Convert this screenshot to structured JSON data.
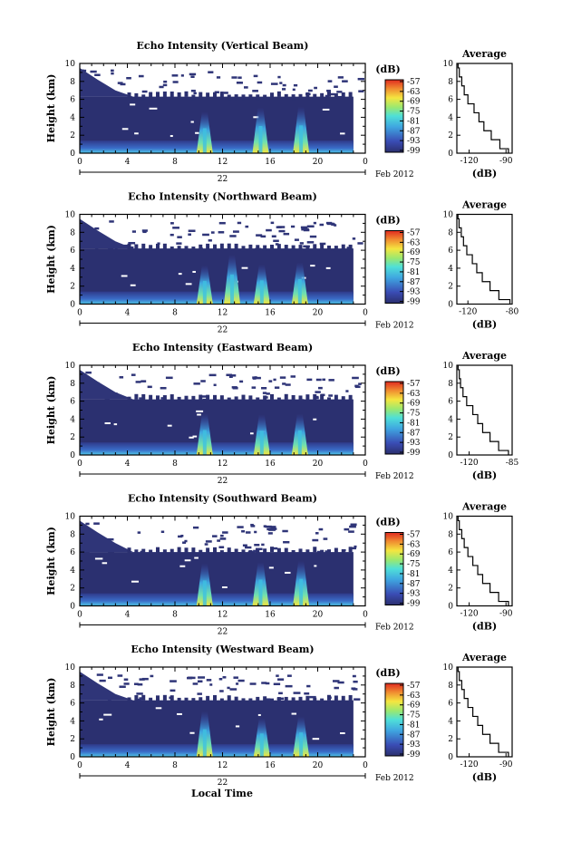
{
  "figure": {
    "xlabel": "Local Time",
    "date_label": "Feb 2012",
    "day_label": "22",
    "x_ticks": [
      "0",
      "4",
      "8",
      "12",
      "16",
      "20",
      "0"
    ],
    "y_ticks": [
      "0",
      "2",
      "4",
      "6",
      "8",
      "10"
    ],
    "ylabel": "Height (km)",
    "colorbar_unit": "(dB)",
    "colorbar_ticks": [
      "-57",
      "-63",
      "-69",
      "-75",
      "-81",
      "-87",
      "-93",
      "-99"
    ],
    "colors": {
      "background_echo": "#2b3070",
      "low": "#3a48b0",
      "mid": "#3fb8e0",
      "high": "#f2e040",
      "peak": "#e03020"
    }
  },
  "avg_label": "Average",
  "avg_xlabel": "(dB)",
  "chart_data": [
    {
      "type": "heatmap",
      "title": "Echo Intensity (Vertical Beam)",
      "xlabel": "Local Time",
      "ylabel": "Height (km)",
      "xlim": [
        0,
        24
      ],
      "ylim": [
        0,
        10
      ],
      "echo_top_km": 6.3,
      "convective_times_h": [
        10.5,
        15.2,
        18.6
      ],
      "colorbar": {
        "unit": "(dB)",
        "range": [
          -99,
          -57
        ]
      },
      "average_profile": {
        "xlim": [
          -130,
          -85
        ],
        "xticks": [
          "-120",
          "-90"
        ],
        "height": [
          0,
          1,
          2,
          3,
          4,
          5,
          6,
          7,
          8,
          9,
          10
        ],
        "value": [
          -88,
          -95,
          -102,
          -108,
          -112,
          -116,
          -121,
          -124,
          -126,
          -128,
          -129
        ]
      }
    },
    {
      "type": "heatmap",
      "title": "Echo Intensity (Northward Beam)",
      "xlabel": "Local Time",
      "ylabel": "Height (km)",
      "xlim": [
        0,
        24
      ],
      "ylim": [
        0,
        10
      ],
      "echo_top_km": 6.2,
      "convective_times_h": [
        10.5,
        12.8,
        15.3,
        18.5
      ],
      "colorbar": {
        "unit": "(dB)",
        "range": [
          -99,
          -57
        ]
      },
      "average_profile": {
        "xlim": [
          -130,
          -80
        ],
        "xticks": [
          "-120",
          "-80"
        ],
        "height": [
          0,
          1,
          2,
          3,
          4,
          5,
          6,
          7,
          8,
          9,
          10
        ],
        "value": [
          -82,
          -92,
          -100,
          -107,
          -112,
          -116,
          -121,
          -124,
          -126,
          -128,
          -129
        ]
      }
    },
    {
      "type": "heatmap",
      "title": "Echo Intensity (Eastward Beam)",
      "xlabel": "Local Time",
      "ylabel": "Height (km)",
      "xlim": [
        0,
        24
      ],
      "ylim": [
        0,
        10
      ],
      "echo_top_km": 6.2,
      "convective_times_h": [
        10.5,
        15.3,
        18.5
      ],
      "colorbar": {
        "unit": "(dB)",
        "range": [
          -99,
          -57
        ]
      },
      "average_profile": {
        "xlim": [
          -130,
          -85
        ],
        "xticks": [
          "-120",
          "-85"
        ],
        "height": [
          0,
          1,
          2,
          3,
          4,
          5,
          6,
          7,
          8,
          9,
          10
        ],
        "value": [
          -88,
          -96,
          -103,
          -109,
          -113,
          -117,
          -122,
          -125,
          -127,
          -128,
          -129
        ]
      }
    },
    {
      "type": "heatmap",
      "title": "Echo Intensity (Southward Beam)",
      "xlabel": "Local Time",
      "ylabel": "Height (km)",
      "xlim": [
        0,
        24
      ],
      "ylim": [
        0,
        10
      ],
      "echo_top_km": 6.0,
      "convective_times_h": [
        10.5,
        15.2,
        18.6
      ],
      "colorbar": {
        "unit": "(dB)",
        "range": [
          -99,
          -57
        ]
      },
      "average_profile": {
        "xlim": [
          -130,
          -85
        ],
        "xticks": [
          "-120",
          "-90"
        ],
        "height": [
          0,
          1,
          2,
          3,
          4,
          5,
          6,
          7,
          8,
          9,
          10
        ],
        "value": [
          -88,
          -96,
          -103,
          -109,
          -113,
          -117,
          -121,
          -124,
          -126,
          -128,
          -129
        ]
      }
    },
    {
      "type": "heatmap",
      "title": "Echo Intensity (Westward Beam)",
      "xlabel": "Local Time",
      "ylabel": "Height (km)",
      "xlim": [
        0,
        24
      ],
      "ylim": [
        0,
        10
      ],
      "echo_top_km": 6.3,
      "convective_times_h": [
        10.5,
        15.3,
        18.6
      ],
      "colorbar": {
        "unit": "(dB)",
        "range": [
          -99,
          -57
        ]
      },
      "average_profile": {
        "xlim": [
          -130,
          -85
        ],
        "xticks": [
          "-120",
          "-90"
        ],
        "height": [
          0,
          1,
          2,
          3,
          4,
          5,
          6,
          7,
          8,
          9,
          10
        ],
        "value": [
          -88,
          -96,
          -103,
          -109,
          -113,
          -117,
          -121,
          -124,
          -126,
          -128,
          -129
        ]
      }
    }
  ]
}
